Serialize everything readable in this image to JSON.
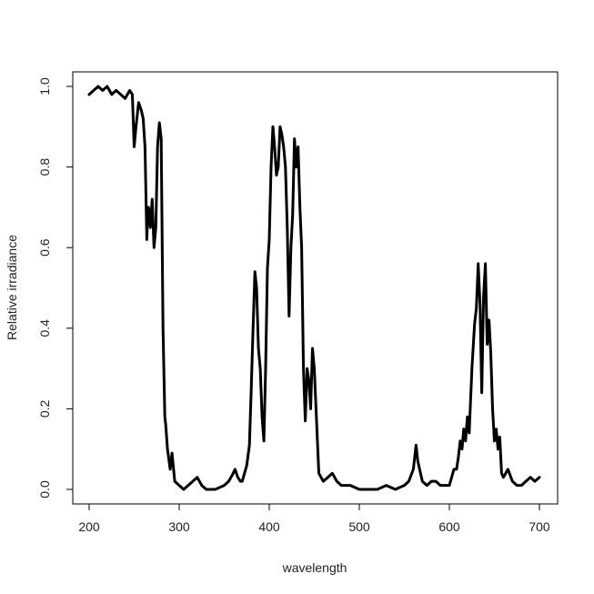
{
  "chart_data": {
    "type": "line",
    "title": "",
    "xlabel": "wavelength",
    "ylabel": "Relative irradiance",
    "xlim": [
      200,
      700
    ],
    "ylim": [
      0.0,
      1.0
    ],
    "x_ticks": [
      200,
      300,
      400,
      500,
      600,
      700
    ],
    "y_ticks": [
      0.0,
      0.2,
      0.4,
      0.6,
      0.8,
      1.0
    ],
    "x_tick_labels": [
      "200",
      "300",
      "400",
      "500",
      "600",
      "700"
    ],
    "y_tick_labels": [
      "0.0",
      "0.2",
      "0.4",
      "0.6",
      "0.8",
      "1.0"
    ],
    "grid": false,
    "legend": "none",
    "line_color": "#000000",
    "series": [
      {
        "x": [
          200,
          205,
          210,
          215,
          220,
          225,
          230,
          235,
          240,
          245,
          248,
          250,
          252,
          255,
          258,
          260,
          262,
          264,
          265,
          266,
          268,
          270,
          272,
          274,
          276,
          278,
          280,
          282,
          284,
          285,
          287,
          290,
          292,
          295,
          300,
          305,
          310,
          315,
          320,
          325,
          330,
          340,
          350,
          355,
          360,
          362,
          365,
          368,
          370,
          375,
          378,
          380,
          382,
          384,
          386,
          388,
          390,
          392,
          394,
          396,
          398,
          400,
          402,
          404,
          406,
          408,
          410,
          412,
          414,
          416,
          418,
          420,
          422,
          424,
          426,
          428,
          430,
          432,
          434,
          436,
          438,
          440,
          442,
          444,
          446,
          448,
          450,
          455,
          460,
          465,
          470,
          475,
          480,
          490,
          500,
          510,
          520,
          530,
          540,
          550,
          555,
          560,
          563,
          565,
          568,
          570,
          575,
          580,
          585,
          590,
          595,
          600,
          605,
          608,
          610,
          612,
          614,
          616,
          618,
          620,
          622,
          625,
          628,
          630,
          632,
          634,
          636,
          638,
          640,
          642,
          644,
          646,
          648,
          650,
          652,
          654,
          656,
          658,
          660,
          665,
          670,
          675,
          680,
          685,
          690,
          695,
          700
        ],
        "y": [
          0.98,
          0.99,
          1.0,
          0.99,
          1.0,
          0.98,
          0.99,
          0.98,
          0.97,
          0.99,
          0.98,
          0.85,
          0.9,
          0.96,
          0.94,
          0.92,
          0.85,
          0.62,
          0.68,
          0.7,
          0.65,
          0.72,
          0.6,
          0.65,
          0.85,
          0.91,
          0.87,
          0.4,
          0.18,
          0.16,
          0.1,
          0.05,
          0.09,
          0.02,
          0.01,
          0.0,
          0.01,
          0.02,
          0.03,
          0.01,
          0.0,
          0.0,
          0.01,
          0.02,
          0.04,
          0.05,
          0.03,
          0.02,
          0.02,
          0.06,
          0.11,
          0.25,
          0.4,
          0.54,
          0.5,
          0.35,
          0.3,
          0.18,
          0.12,
          0.3,
          0.55,
          0.62,
          0.8,
          0.9,
          0.85,
          0.78,
          0.8,
          0.9,
          0.88,
          0.85,
          0.8,
          0.65,
          0.43,
          0.6,
          0.68,
          0.87,
          0.8,
          0.85,
          0.7,
          0.6,
          0.3,
          0.17,
          0.3,
          0.27,
          0.2,
          0.35,
          0.3,
          0.04,
          0.02,
          0.03,
          0.04,
          0.02,
          0.01,
          0.01,
          0.0,
          0.0,
          0.0,
          0.01,
          0.0,
          0.01,
          0.02,
          0.05,
          0.11,
          0.07,
          0.04,
          0.02,
          0.01,
          0.02,
          0.02,
          0.01,
          0.01,
          0.01,
          0.05,
          0.05,
          0.08,
          0.12,
          0.1,
          0.15,
          0.12,
          0.18,
          0.14,
          0.3,
          0.41,
          0.45,
          0.56,
          0.46,
          0.24,
          0.48,
          0.56,
          0.36,
          0.42,
          0.34,
          0.2,
          0.12,
          0.15,
          0.1,
          0.13,
          0.04,
          0.03,
          0.05,
          0.02,
          0.01,
          0.01,
          0.02,
          0.03,
          0.02,
          0.03
        ]
      }
    ]
  }
}
